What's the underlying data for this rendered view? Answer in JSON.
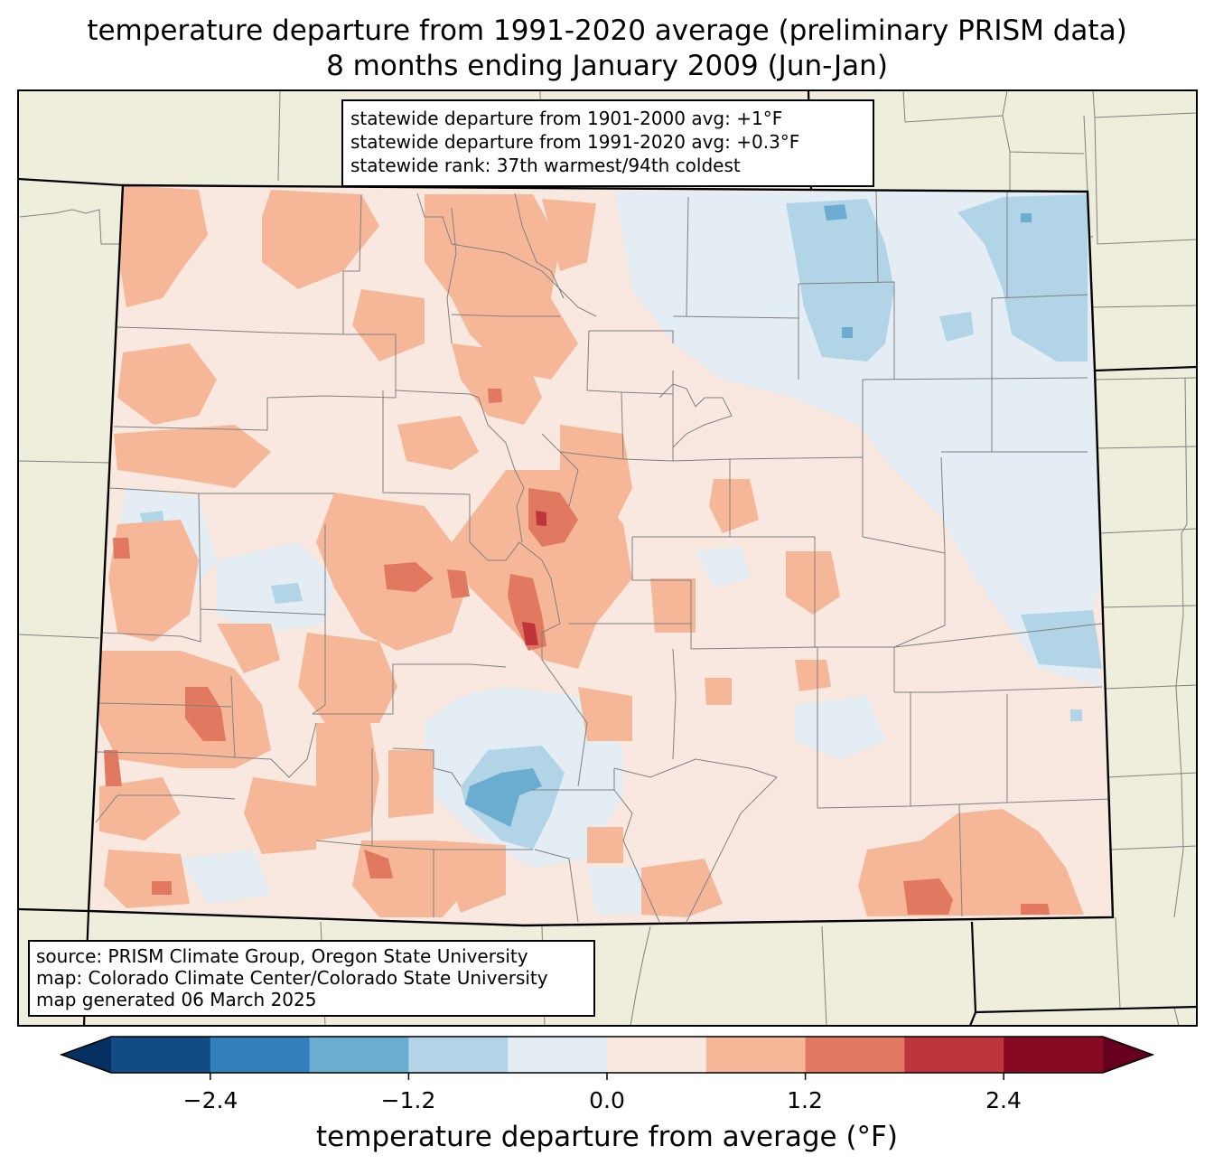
{
  "title": {
    "line1": "temperature departure from 1991-2020 average (preliminary PRISM data)",
    "line2": "8 months ending January 2009 (Jun-Jan)"
  },
  "stats": {
    "line1": "statewide departure from 1901-2000 avg: +1°F",
    "line2": "statewide departure from 1991-2020 avg: +0.3°F",
    "line3": "statewide rank: 37th warmest/94th coldest"
  },
  "source": {
    "line1": "source: PRISM Climate Group, Oregon State University",
    "line2": "map: Colorado Climate Center/Colorado State University",
    "line3": "map generated 06 March 2025"
  },
  "colorbar": {
    "label": "temperature departure from average (°F)",
    "ticks": [
      "−2.4",
      "−1.2",
      "0.0",
      "1.2",
      "2.4"
    ],
    "tick_values": [
      -2.4,
      -1.2,
      0.0,
      1.2,
      2.4
    ],
    "bins": [
      -3.0,
      -2.4,
      -1.8,
      -1.2,
      -0.6,
      0.0,
      0.6,
      1.2,
      1.8,
      2.4,
      3.0
    ],
    "colors": [
      "#053061",
      "#134b87",
      "#327fbb",
      "#6bacd1",
      "#b1d4e7",
      "#e3edf3",
      "#f9e8df",
      "#f6b799",
      "#e17860",
      "#bf353c",
      "#870a24",
      "#67001f"
    ],
    "extend": "both"
  },
  "map_colors": {
    "background": "#efeedd",
    "state_fill_base": "#f9e8df",
    "state_border": "#000000",
    "county_border": "#808080"
  }
}
